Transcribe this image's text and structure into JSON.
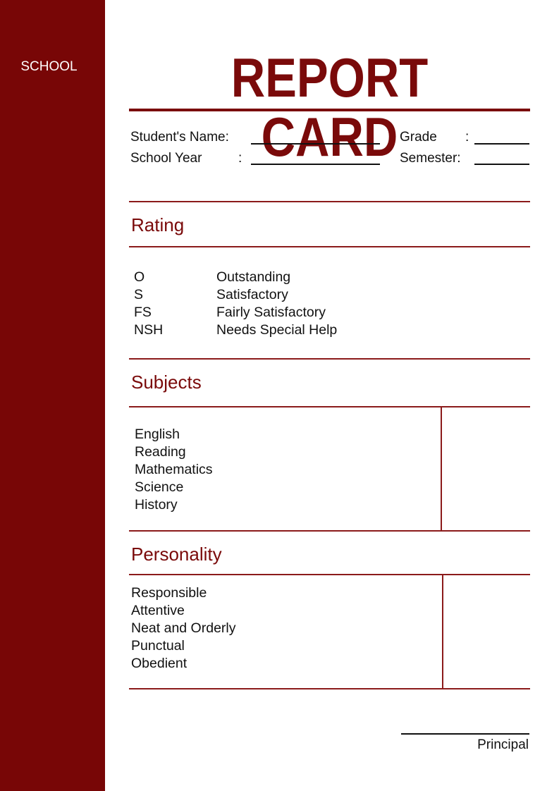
{
  "sidebar": {
    "school_label": "SCHOOL",
    "color": "#780606"
  },
  "header": {
    "title": "REPORT CARD"
  },
  "info": {
    "student_name_label": "Student's Name:",
    "school_year_label": "School Year",
    "school_year_colon": ":",
    "grade_label": "Grade",
    "grade_colon": ":",
    "semester_label": "Semester:"
  },
  "rating": {
    "heading": "Rating",
    "items": [
      {
        "code": "O",
        "meaning": "Outstanding"
      },
      {
        "code": "S",
        "meaning": "Satisfactory"
      },
      {
        "code": "FS",
        "meaning": "Fairly Satisfactory"
      },
      {
        "code": "NSH",
        "meaning": "Needs Special Help"
      }
    ]
  },
  "subjects": {
    "heading": "Subjects",
    "items": [
      "English",
      "Reading",
      "Mathematics",
      "Science",
      "History"
    ]
  },
  "personality": {
    "heading": "Personality",
    "items": [
      "Responsible",
      "Attentive",
      "Neat and Orderly",
      "Punctual",
      "Obedient"
    ]
  },
  "signature": {
    "label": "Principal"
  }
}
